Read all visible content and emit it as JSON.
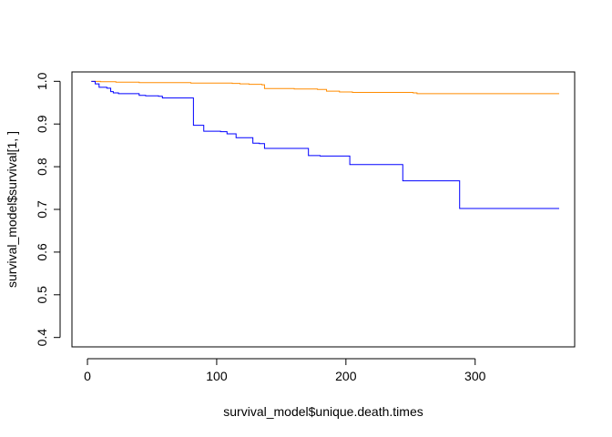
{
  "chart_data": {
    "type": "line",
    "step": true,
    "title": "",
    "xlabel": "survival_model$unique.death.times",
    "ylabel": "survival_model$survival[1, ]",
    "xlim": [
      -12,
      377
    ],
    "ylim": [
      0.378,
      1.022
    ],
    "xticks": [
      0,
      100,
      200,
      300
    ],
    "yticks": [
      0.4,
      0.5,
      0.6,
      0.7,
      0.8,
      0.9,
      1.0
    ],
    "xtick_labels": [
      "0",
      "100",
      "200",
      "300"
    ],
    "ytick_labels": [
      "0.4",
      "0.5",
      "0.6",
      "0.7",
      "0.8",
      "0.9",
      "1.0"
    ],
    "grid": false,
    "legend": "none",
    "series": [
      {
        "color": "#ff8c00",
        "x": [
          3,
          10,
          22,
          40,
          60,
          80,
          100,
          112,
          118,
          125,
          135,
          137,
          160,
          178,
          185,
          195,
          205,
          230,
          252,
          255,
          365
        ],
        "y": [
          1.0,
          0.999,
          0.998,
          0.997,
          0.997,
          0.996,
          0.996,
          0.995,
          0.994,
          0.993,
          0.992,
          0.983,
          0.982,
          0.981,
          0.977,
          0.975,
          0.974,
          0.974,
          0.973,
          0.971,
          0.971
        ]
      },
      {
        "color": "#0000ff",
        "x": [
          3,
          6,
          9,
          15,
          18,
          20,
          24,
          40,
          45,
          55,
          58,
          82,
          90,
          103,
          108,
          115,
          128,
          133,
          137,
          171,
          180,
          203,
          244,
          288,
          365
        ],
        "y": [
          1.0,
          0.994,
          0.986,
          0.984,
          0.976,
          0.973,
          0.971,
          0.967,
          0.966,
          0.965,
          0.961,
          0.897,
          0.883,
          0.882,
          0.877,
          0.868,
          0.855,
          0.854,
          0.843,
          0.826,
          0.825,
          0.805,
          0.767,
          0.702,
          0.702
        ]
      }
    ]
  }
}
